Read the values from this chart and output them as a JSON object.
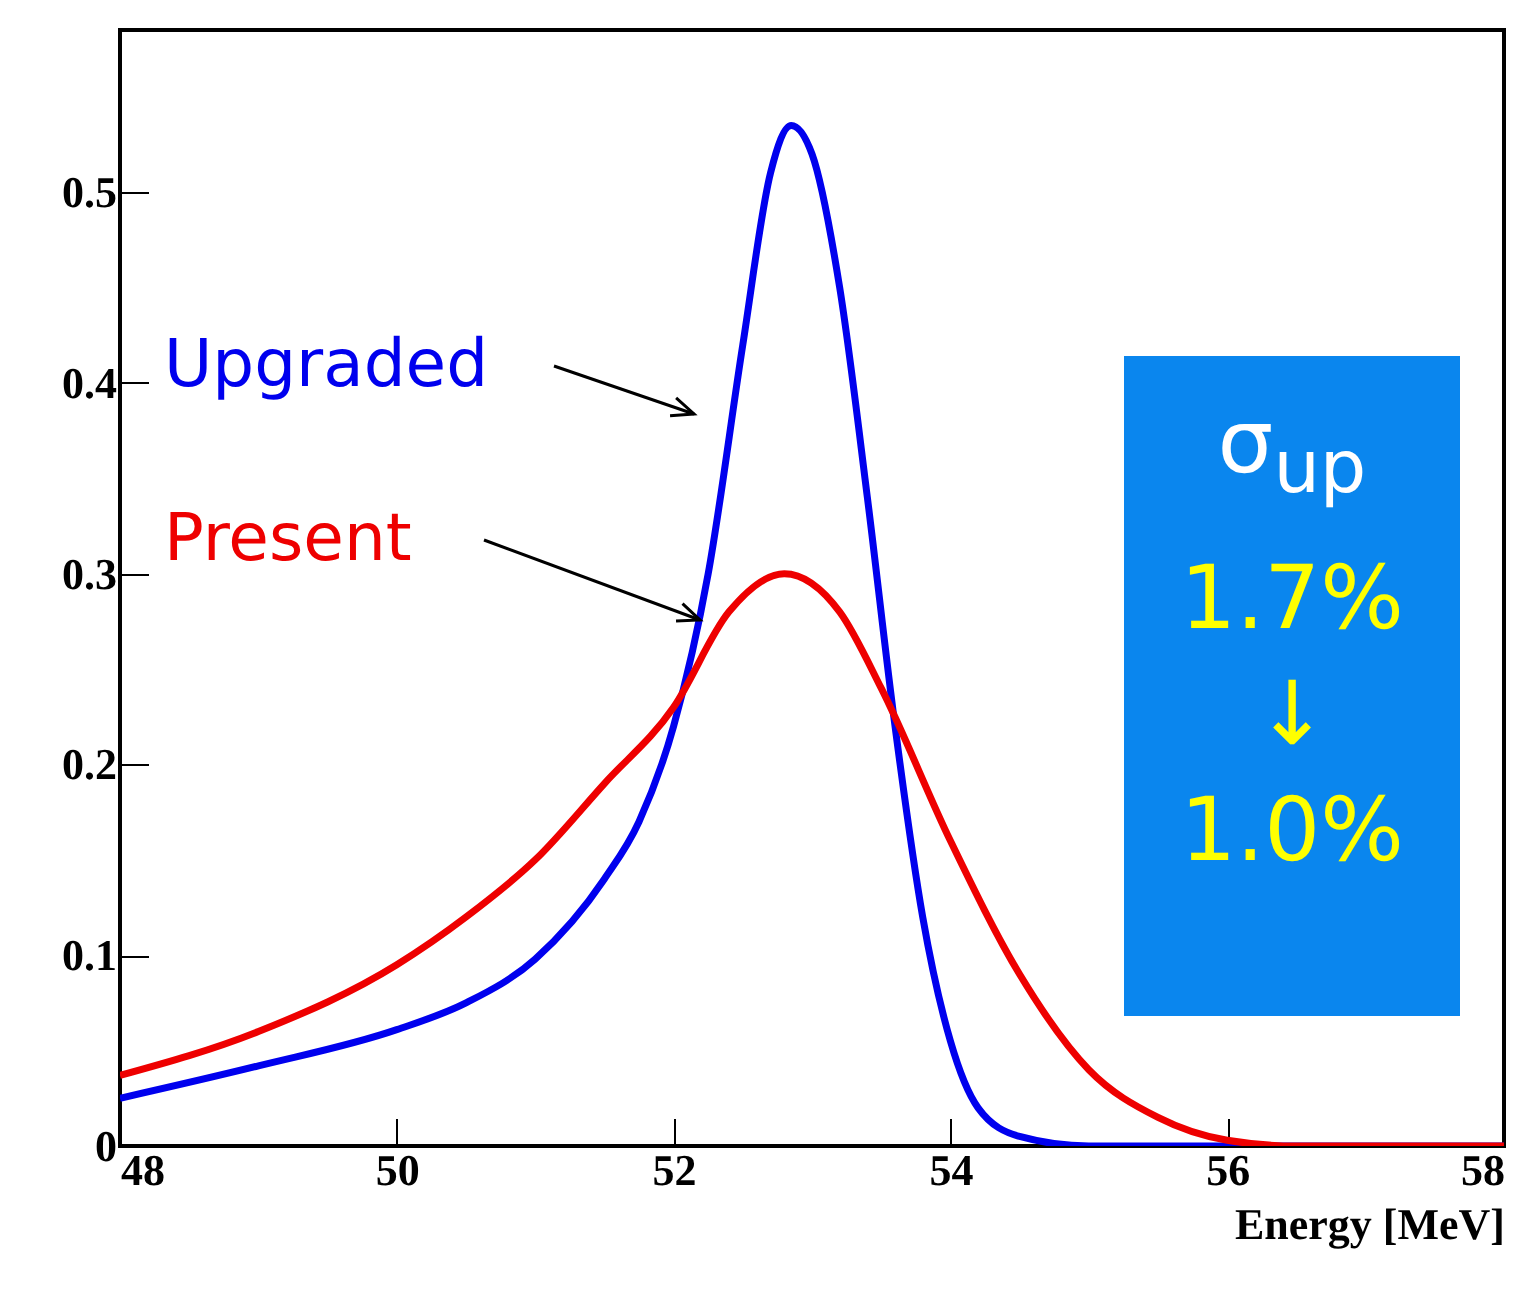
{
  "chart_data": {
    "type": "line",
    "xlabel": "Energy [MeV]",
    "xlim": [
      48,
      58
    ],
    "xticks": [
      48,
      50,
      52,
      54,
      56,
      58
    ],
    "ylim": [
      0,
      0.585
    ],
    "yticks": [
      0,
      0.1,
      0.2,
      0.3,
      0.4,
      0.5
    ],
    "grid": false,
    "series": [
      {
        "name": "Upgraded",
        "color": "#0000ee",
        "x": [
          48,
          49,
          50,
          50.5,
          51,
          51.5,
          51.75,
          52,
          52.25,
          52.5,
          52.7,
          52.85,
          53,
          53.2,
          53.4,
          53.6,
          53.8,
          54,
          54.2,
          54.5,
          55,
          58
        ],
        "values": [
          0.025,
          0.042,
          0.061,
          0.075,
          0.098,
          0.14,
          0.17,
          0.22,
          0.3,
          0.42,
          0.51,
          0.535,
          0.52,
          0.45,
          0.34,
          0.22,
          0.12,
          0.055,
          0.02,
          0.005,
          0,
          0
        ]
      },
      {
        "name": "Present",
        "color": "#ee0000",
        "x": [
          48,
          49,
          50,
          50.5,
          51,
          51.5,
          52,
          52.4,
          52.8,
          53.2,
          53.5,
          54,
          54.5,
          55,
          55.5,
          56,
          56.5,
          58
        ],
        "values": [
          0.037,
          0.06,
          0.095,
          0.12,
          0.15,
          0.19,
          0.23,
          0.28,
          0.3,
          0.28,
          0.24,
          0.16,
          0.09,
          0.04,
          0.015,
          0.003,
          0,
          0
        ]
      }
    ],
    "annotations": [
      "σ$_{up}$",
      "1.7%",
      "↓",
      "1.0%"
    ]
  }
}
